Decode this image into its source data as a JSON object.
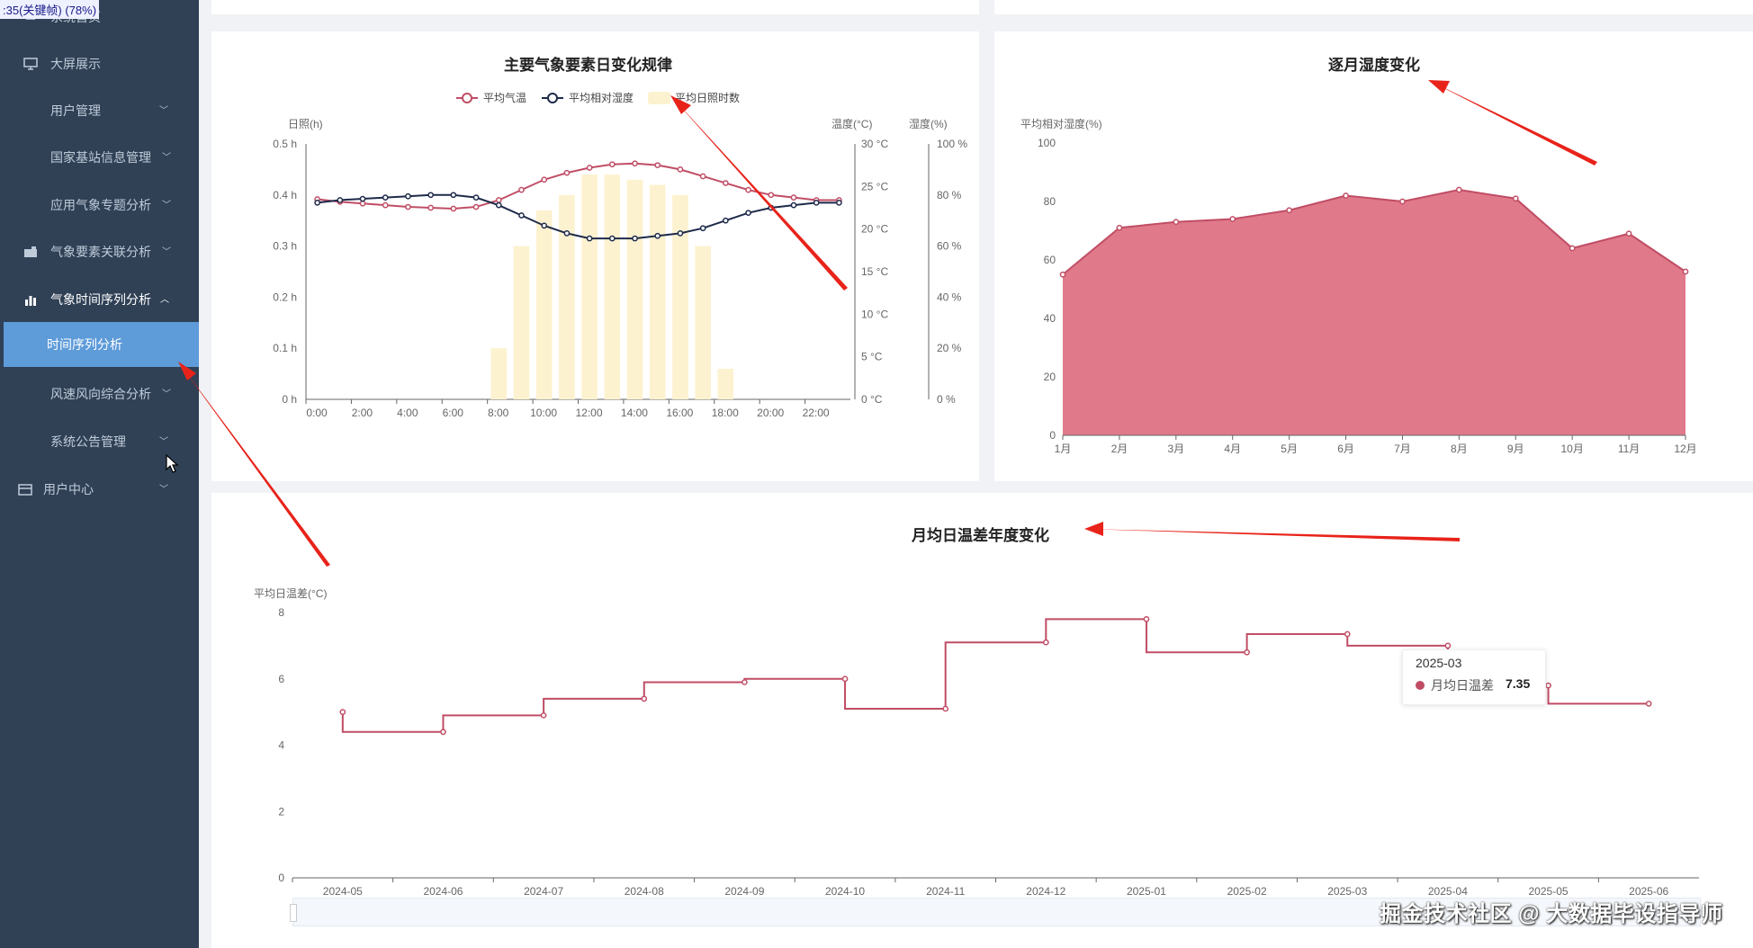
{
  "overlay_text": ":35(关键帧) (78%)",
  "sidebar": {
    "items": [
      {
        "label": "系统首页",
        "icon": "home-icon"
      },
      {
        "label": "大屏展示",
        "icon": "monitor-icon"
      },
      {
        "label": "用户管理",
        "icon": "grid-icon"
      },
      {
        "label": "国家基站信息管理",
        "icon": "grid-icon"
      },
      {
        "label": "应用气象专题分析",
        "icon": "grid-icon"
      },
      {
        "label": "气象要素关联分析",
        "icon": "briefcase-icon"
      },
      {
        "label": "气象时间序列分析",
        "icon": "bar-chart-icon"
      },
      {
        "label": "风速风向综合分析",
        "icon": "grid-icon"
      },
      {
        "label": "系统公告管理",
        "icon": "grid-icon"
      },
      {
        "label": "用户中心",
        "icon": "card-icon"
      }
    ],
    "active_sub": "时间序列分析"
  },
  "charts": {
    "daily": {
      "title": "主要气象要素日变化规律",
      "legend": [
        "平均气温",
        "平均相对湿度",
        "平均日照时数"
      ],
      "y_left_name": "日照(h)",
      "y_temp_name": "温度(°C)",
      "y_hum_name": "湿度(%)",
      "y_left_ticks": [
        "0 h",
        "0.1 h",
        "0.2 h",
        "0.3 h",
        "0.4 h",
        "0.5 h"
      ],
      "y_temp_ticks": [
        "0 °C",
        "5 °C",
        "10 °C",
        "15 °C",
        "20 °C",
        "25 °C",
        "30 °C"
      ],
      "y_hum_ticks": [
        "0 %",
        "20 %",
        "40 %",
        "60 %",
        "80 %",
        "100 %"
      ],
      "x_ticks": [
        "0:00",
        "2:00",
        "4:00",
        "6:00",
        "8:00",
        "10:00",
        "12:00",
        "14:00",
        "16:00",
        "18:00",
        "20:00",
        "22:00"
      ]
    },
    "humidity": {
      "title": "逐月湿度变化",
      "y_name": "平均相对湿度(%)",
      "y_ticks": [
        "0",
        "20",
        "40",
        "60",
        "80",
        "100"
      ]
    },
    "tempdiff": {
      "title": "月均日温差年度变化",
      "y_name": "平均日温差(°C)",
      "y_ticks": [
        "0",
        "2",
        "4",
        "6",
        "8"
      ]
    }
  },
  "tooltip": {
    "title": "2025-03",
    "series": "月均日温差",
    "value": "7.35"
  },
  "watermark": "掘金技术社区 @ 大数据毕设指导师",
  "colors": {
    "sidebar": "#304156",
    "active_sub": "#5e9bd9",
    "temp": "#c04d65",
    "humidity_line": "#1e2a4a",
    "sunshine": "#fdf2d0",
    "area": "#e07a8a",
    "arrow": "#e8231a"
  },
  "chart_data": [
    {
      "type": "line",
      "title": "主要气象要素日变化规律",
      "x": [
        "0:00",
        "1:00",
        "2:00",
        "3:00",
        "4:00",
        "5:00",
        "6:00",
        "7:00",
        "8:00",
        "9:00",
        "10:00",
        "11:00",
        "12:00",
        "13:00",
        "14:00",
        "15:00",
        "16:00",
        "17:00",
        "18:00",
        "19:00",
        "20:00",
        "21:00",
        "22:00",
        "23:00"
      ],
      "series": [
        {
          "name": "平均气温",
          "axis": "temperature",
          "values": [
            23.5,
            23.2,
            23.0,
            22.8,
            22.6,
            22.5,
            22.4,
            22.6,
            23.4,
            24.6,
            25.8,
            26.6,
            27.2,
            27.6,
            27.7,
            27.5,
            27.0,
            26.2,
            25.4,
            24.6,
            24.0,
            23.7,
            23.4,
            23.4
          ]
        },
        {
          "name": "平均相对湿度",
          "axis": "humidity",
          "values": [
            77,
            78,
            78.5,
            79,
            79.5,
            80,
            80,
            79,
            76,
            72,
            68,
            65,
            63,
            63,
            63,
            64,
            65,
            67,
            70,
            73,
            75,
            76,
            77,
            77
          ]
        },
        {
          "name": "平均日照时数",
          "axis": "sunshine",
          "type": "bar",
          "values": [
            0,
            0,
            0,
            0,
            0,
            0,
            0,
            0,
            0.1,
            0.3,
            0.37,
            0.4,
            0.44,
            0.44,
            0.43,
            0.42,
            0.4,
            0.3,
            0.06,
            0,
            0,
            0,
            0,
            0
          ]
        }
      ],
      "ylim_sunshine": [
        0,
        0.5
      ],
      "ylim_temperature": [
        0,
        30
      ],
      "ylim_humidity": [
        0,
        100
      ]
    },
    {
      "type": "area",
      "title": "逐月湿度变化",
      "categories": [
        "1月",
        "2月",
        "3月",
        "4月",
        "5月",
        "6月",
        "7月",
        "8月",
        "9月",
        "10月",
        "11月",
        "12月"
      ],
      "values": [
        55,
        71,
        73,
        74,
        77,
        82,
        80,
        84,
        81,
        64,
        69,
        56
      ],
      "ylabel": "平均相对湿度(%)",
      "ylim": [
        0,
        100
      ]
    },
    {
      "type": "line",
      "title": "月均日温差年度变化",
      "step": "start",
      "categories": [
        "2024-05",
        "2024-06",
        "2024-07",
        "2024-08",
        "2024-09",
        "2024-10",
        "2024-11",
        "2024-12",
        "2025-01",
        "2025-02",
        "2025-03",
        "2025-04",
        "2025-05",
        "2025-06"
      ],
      "values": [
        5.0,
        4.4,
        4.9,
        5.4,
        5.9,
        6.0,
        5.1,
        7.1,
        7.8,
        6.8,
        7.35,
        7.0,
        5.8,
        5.25
      ],
      "ylabel": "平均日温差(°C)",
      "ylim": [
        0,
        8
      ]
    }
  ]
}
